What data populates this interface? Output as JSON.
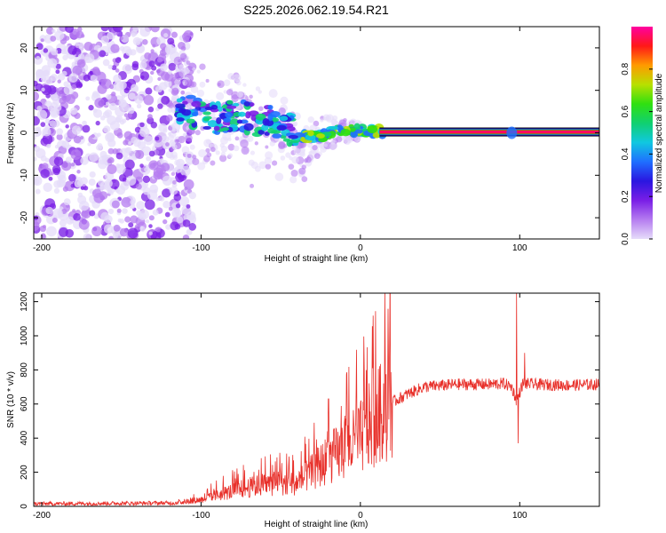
{
  "title": "S225.2026.062.19.54.R21",
  "colors": {
    "snr_line": "#e8302a",
    "colormap": [
      "#e6dcfa",
      "#b57cf0",
      "#7a1ee6",
      "#2a16e0",
      "#1f6fff",
      "#10c8e0",
      "#10d070",
      "#30e010",
      "#b8e000",
      "#ff9a00",
      "#ff1818",
      "#ff00a0"
    ]
  },
  "chart_data": [
    {
      "type": "heatmap",
      "xlabel": "Height of straight line (km)",
      "ylabel": "Frequency (Hz)",
      "xlim": [
        -205,
        150
      ],
      "ylim": [
        -25,
        25
      ],
      "xticks": [
        -200,
        -100,
        0,
        100
      ],
      "yticks": [
        -20,
        -10,
        0,
        10,
        20
      ],
      "colorbar": {
        "label": "Normalized spectral amplitude",
        "range": [
          0,
          1
        ],
        "ticks": [
          "0.0",
          "0.2",
          "0.4",
          "0.6",
          "0.8"
        ]
      },
      "ridge": [
        [
          -115,
          6
        ],
        [
          -105,
          5
        ],
        [
          -95,
          3
        ],
        [
          -85,
          4
        ],
        [
          -75,
          4
        ],
        [
          -65,
          3
        ],
        [
          -55,
          3
        ],
        [
          -45,
          1
        ],
        [
          -35,
          -1
        ],
        [
          -25,
          -1
        ],
        [
          -15,
          0.5
        ],
        [
          -5,
          0.5
        ],
        [
          5,
          0.5
        ],
        [
          15,
          0.2
        ],
        [
          150,
          0.2
        ]
      ],
      "noise_region": [
        -205,
        -115
      ],
      "bright_spot": [
        95,
        0
      ]
    },
    {
      "type": "line",
      "xlabel": "Height of straight line (km)",
      "ylabel": "SNR (10 * v/v)",
      "xlim": [
        -205,
        150
      ],
      "ylim": [
        0,
        1250
      ],
      "xticks": [
        -200,
        -100,
        0,
        100
      ],
      "yticks": [
        0,
        200,
        400,
        600,
        800,
        1000,
        1200
      ],
      "series": [
        {
          "name": "SNR",
          "envelope": {
            "x": [
              -205,
              -115,
              -100,
              -80,
              -60,
              -40,
              -30,
              -20,
              -10,
              0,
              10,
              20,
              30,
              40,
              60,
              80,
              90,
              95,
              98,
              102,
              110,
              130,
              150
            ],
            "y": [
              15,
              20,
              40,
              90,
              130,
              140,
              200,
              280,
              330,
              400,
              520,
              610,
              660,
              700,
              715,
              715,
              720,
              700,
              620,
              720,
              715,
              710,
              715
            ]
          },
          "spikes": [
            [
              98,
              1250
            ],
            [
              99,
              370
            ],
            [
              103,
              900
            ],
            [
              -20,
              630
            ]
          ]
        }
      ]
    }
  ]
}
